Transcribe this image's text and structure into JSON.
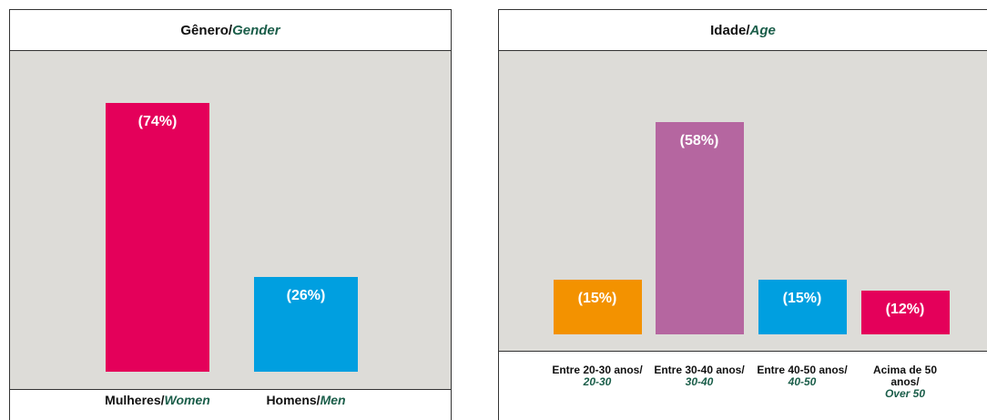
{
  "chart_data": [
    {
      "type": "bar",
      "title": "Gênero/",
      "title_en": "Gender",
      "categories": [
        "Mulheres/",
        "Homens/"
      ],
      "categories_en": [
        "Women",
        "Men"
      ],
      "values": [
        74,
        26
      ],
      "value_labels": [
        "(74%)",
        "(26%)"
      ],
      "colors": [
        "#e4005a",
        "#009fe0"
      ]
    },
    {
      "type": "bar",
      "title": "Idade/",
      "title_en": "Age",
      "categories": [
        "Entre 20-30 anos/",
        "Entre 30-40 anos/",
        "Entre 40-50 anos/",
        "Acima de 50 anos/"
      ],
      "categories_en": [
        "20-30",
        "30-40",
        "40-50",
        "Over 50"
      ],
      "values": [
        15,
        58,
        15,
        12
      ],
      "value_labels": [
        "(15%)",
        "(58%)",
        "(15%)",
        "(12%)"
      ],
      "colors": [
        "#f39200",
        "#b566a0",
        "#009fe0",
        "#e4005a"
      ]
    }
  ]
}
